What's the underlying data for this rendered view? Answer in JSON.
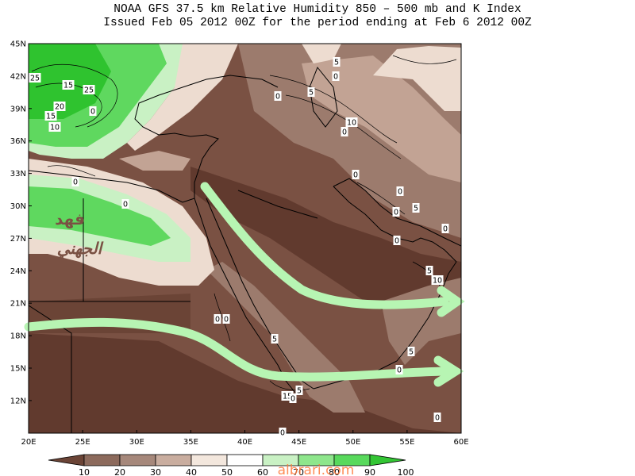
{
  "title": {
    "line1": "NOAA GFS 37.5 km Relative Humidity 850 – 500 mb and K Index",
    "line2": "Issued Feb 05 2012 00Z for the period ending at Feb 6 2012 00Z"
  },
  "axes": {
    "lat_labels": [
      "45N",
      "42N",
      "39N",
      "36N",
      "33N",
      "30N",
      "27N",
      "24N",
      "21N",
      "18N",
      "15N",
      "12N"
    ],
    "lon_labels": [
      "20E",
      "25E",
      "30E",
      "35E",
      "40E",
      "45E",
      "50E",
      "55E",
      "60E"
    ]
  },
  "contour_labels": [
    {
      "text": "25",
      "name": "k-index-label"
    },
    {
      "text": "15",
      "name": "k-index-label"
    },
    {
      "text": "25",
      "name": "k-index-label"
    },
    {
      "text": "20",
      "name": "k-index-label"
    },
    {
      "text": "15",
      "name": "k-index-label"
    },
    {
      "text": "10",
      "name": "k-index-label"
    },
    {
      "text": "0",
      "name": "k-index-label"
    },
    {
      "text": "0",
      "name": "k-index-label"
    },
    {
      "text": "0",
      "name": "k-index-label"
    },
    {
      "text": "5",
      "name": "k-index-label"
    },
    {
      "text": "0",
      "name": "k-index-label"
    },
    {
      "text": "5",
      "name": "k-index-label"
    },
    {
      "text": "0",
      "name": "k-index-label"
    },
    {
      "text": "10",
      "name": "k-index-label"
    },
    {
      "text": "0",
      "name": "k-index-label"
    },
    {
      "text": "0",
      "name": "k-index-label"
    },
    {
      "text": "0",
      "name": "k-index-label"
    },
    {
      "text": "5",
      "name": "k-index-label"
    },
    {
      "text": "0",
      "name": "k-index-label"
    },
    {
      "text": "0",
      "name": "k-index-label"
    },
    {
      "text": "0",
      "name": "k-index-label"
    },
    {
      "text": "5",
      "name": "k-index-label"
    },
    {
      "text": "10",
      "name": "k-index-label"
    },
    {
      "text": "5",
      "name": "k-index-label"
    },
    {
      "text": "0",
      "name": "k-index-label"
    },
    {
      "text": "5",
      "name": "k-index-label"
    },
    {
      "text": "0",
      "name": "k-index-label"
    },
    {
      "text": "0",
      "name": "k-index-label"
    },
    {
      "text": "15",
      "name": "k-index-label"
    },
    {
      "text": "0",
      "name": "k-index-label"
    },
    {
      "text": "5",
      "name": "k-index-label"
    },
    {
      "text": "0",
      "name": "k-index-label"
    },
    {
      "text": "0",
      "name": "k-index-label"
    }
  ],
  "colorbar": {
    "labels": [
      "10",
      "20",
      "30",
      "40",
      "50",
      "60",
      "70",
      "80",
      "90",
      "100"
    ],
    "colors": [
      "#6b4436",
      "#8c6a5c",
      "#a6887b",
      "#c9ad9f",
      "#f3e7dd",
      "#ffffff",
      "#c9f1c4",
      "#8ee68c",
      "#58d95c",
      "#33c534"
    ]
  },
  "palette": {
    "rh_very_dry": "#613a2e",
    "rh_dry": "#7a5143",
    "rh_mid_dry": "#9c7b6d",
    "rh_light": "#c2a394",
    "rh_pale": "#eddcd0",
    "rh_moist": "#c9f1c4",
    "rh_wet": "#5fd85f",
    "rh_very_wet": "#2fc32f",
    "arrow": "#b7f5b3"
  },
  "watermark": {
    "arabic_name": "فهد الجهني",
    "site": "albrari.com"
  }
}
